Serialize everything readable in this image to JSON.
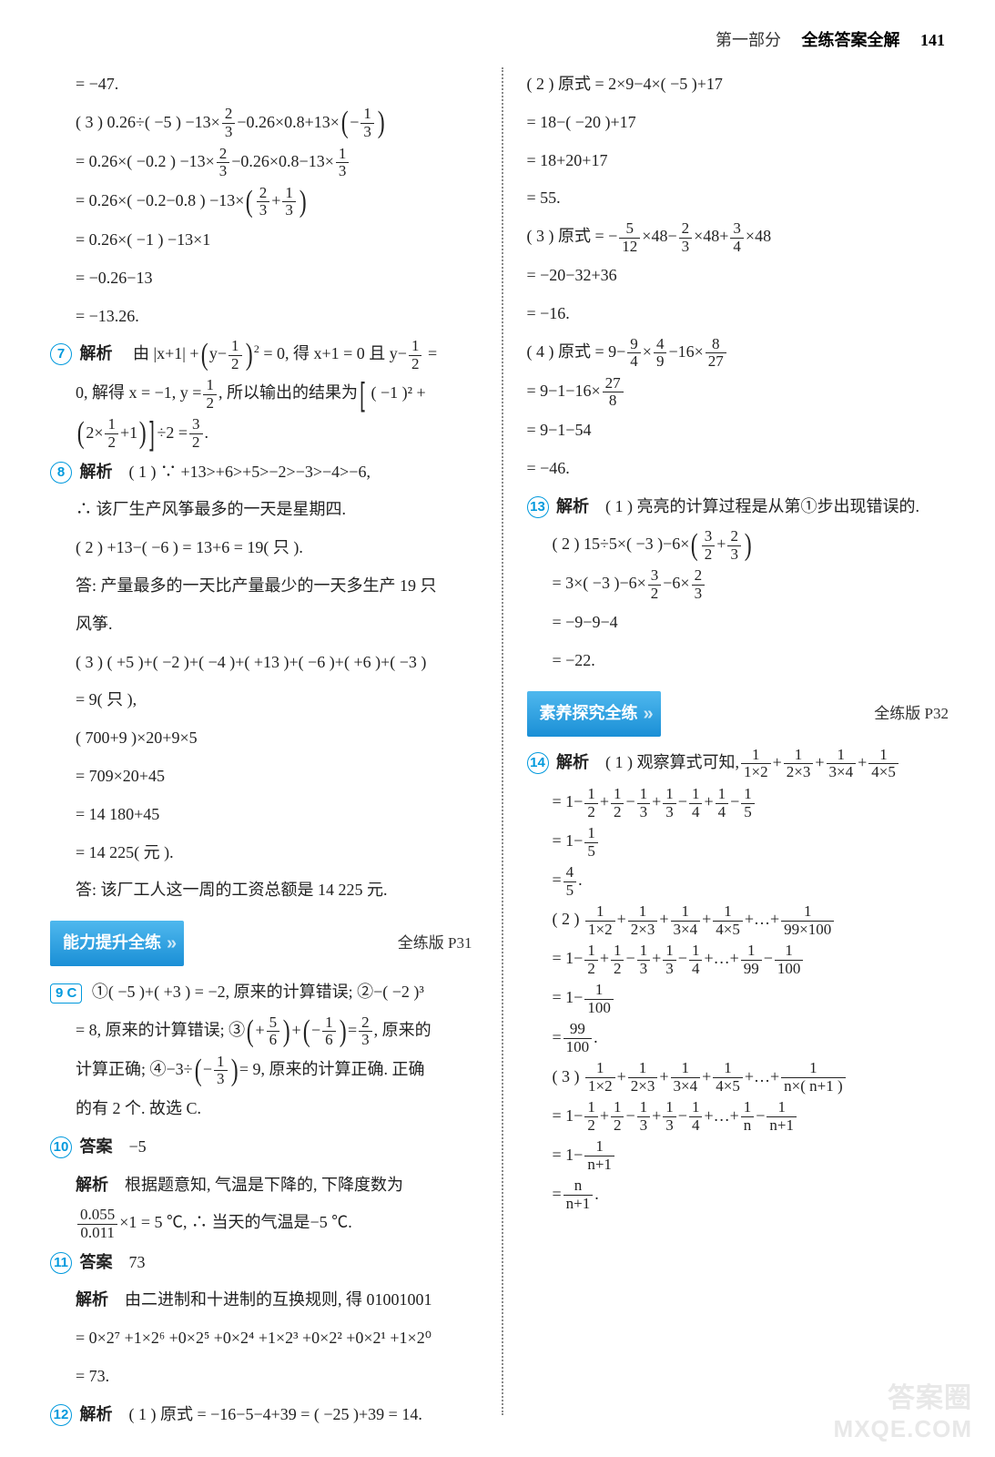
{
  "header": {
    "part": "第一部分",
    "title": "全练答案全解",
    "page": "141"
  },
  "watermark": {
    "cn": "答案圈",
    "en": "MXQE.COM"
  },
  "banner_ability": {
    "label": "能力提升全练",
    "ref": "全练版 P31"
  },
  "banner_explore": {
    "label": "素养探究全练",
    "ref": "全练版 P32"
  },
  "left": {
    "l01": "= −47.",
    "l02a": "( 3 ) 0.26÷( −5 ) −13×",
    "l02b": "−0.26×0.8+13×",
    "l02c_num": "1",
    "l02c_den": "3",
    "l02f_num": "2",
    "l02f_den": "3",
    "l03a": "= 0.26×( −0.2 ) −13×",
    "l03b_num": "2",
    "l03b_den": "3",
    "l03c": "−0.26×0.8−13×",
    "l03d_num": "1",
    "l03d_den": "3",
    "l04a": "= 0.26×( −0.2−0.8 ) −13×",
    "l04b_num": "2",
    "l04b_den": "3",
    "l04c_num": "1",
    "l04c_den": "3",
    "l05": "= 0.26×( −1 ) −13×1",
    "l06": "= −0.26−13",
    "l07": "= −13.26.",
    "q7": "7",
    "q7label": "解析",
    "l08a": "由 |x+1| +",
    "l08b_base": "y−",
    "l08b_num": "1",
    "l08b_den": "2",
    "l08c": "= 0, 得  x+1 = 0  且  y−",
    "l08d_num": "1",
    "l08d_den": "2",
    "l08e": "=",
    "l09a": "0, 解得 x = −1, y =",
    "l09b_num": "1",
    "l09b_den": "2",
    "l09c": ", 所以输出的结果为",
    "l09d": "( −1 )² +",
    "l10a_num": "1",
    "l10a_den": "2",
    "l10b": "2×",
    "l10c": "+1",
    "l10d": "÷2 =",
    "l10e_num": "3",
    "l10e_den": "2",
    "l10f": ".",
    "q8": "8",
    "q8label": "解析",
    "l11": "( 1 ) ∵ +13>+6>+5>−2>−3>−4>−6,",
    "l12": "∴ 该厂生产风筝最多的一天是星期四.",
    "l13": "( 2 ) +13−( −6 ) = 13+6 = 19( 只 ).",
    "l14": "答: 产量最多的一天比产量最少的一天多生产 19 只",
    "l14b": "风筝.",
    "l15": "( 3 ) ( +5 )+( −2 )+( −4 )+( +13 )+( −6 )+( +6 )+( −3 )",
    "l16": "= 9( 只 ),",
    "l17": "( 700+9 )×20+9×5",
    "l18": "= 709×20+45",
    "l19": "= 14 180+45",
    "l20": "= 14 225( 元 ).",
    "l21": "答: 该厂工人这一周的工资总额是 14 225 元.",
    "q9": "9",
    "q9ans": "C",
    "l22a": "①( −5 )+( +3 ) = −2, 原来的计算错误; ②−( −2 )³",
    "l23a": "= 8, 原来的计算错误; ③",
    "l23b_num": "5",
    "l23b_den": "6",
    "l23c_num": "1",
    "l23c_den": "6",
    "l23d": "=",
    "l23e_num": "2",
    "l23e_den": "3",
    "l23f": ", 原来的",
    "l24a": "计算正确; ④−3÷",
    "l24b_num": "1",
    "l24b_den": "3",
    "l24c": "= 9, 原来的计算正确. 正确",
    "l25": "的有 2 个. 故选 C.",
    "q10": "10",
    "q10a": "答案",
    "q10v": "−5",
    "q10b": "解析",
    "l26": "根据题意知, 气温是下降的, 下降度数为",
    "l27a_num": "0.055",
    "l27a_den": "0.011",
    "l27b": "×1 = 5 ℃, ∴ 当天的气温是−5 ℃.",
    "q11": "11",
    "q11a": "答案",
    "q11v": "73",
    "q11b": "解析",
    "l28": "由二进制和十进制的互换规则, 得 01001001",
    "l29": "= 0×2⁷ +1×2⁶ +0×2⁵ +0×2⁴ +1×2³ +0×2² +0×2¹ +1×2⁰",
    "l30": "= 73.",
    "q12": "12",
    "q12label": "解析",
    "l31": "( 1 ) 原式 = −16−5−4+39 = ( −25 )+39 = 14."
  },
  "right": {
    "r01": "( 2 ) 原式 = 2×9−4×( −5 )+17",
    "r02": "= 18−( −20 )+17",
    "r03": "= 18+20+17",
    "r04": "= 55.",
    "r05a": "( 3 ) 原式 = −",
    "r05b_num": "5",
    "r05b_den": "12",
    "r05c": "×48−",
    "r05d_num": "2",
    "r05d_den": "3",
    "r05e": "×48+",
    "r05f_num": "3",
    "r05f_den": "4",
    "r05g": "×48",
    "r06": "= −20−32+36",
    "r07": "= −16.",
    "r08a": "( 4 ) 原式 = 9−",
    "r08b_num": "9",
    "r08b_den": "4",
    "r08c": "×",
    "r08d_num": "4",
    "r08d_den": "9",
    "r08e": "−16×",
    "r08f_num": "8",
    "r08f_den": "27",
    "r09a": "= 9−1−16×",
    "r09b_num": "27",
    "r09b_den": "8",
    "r10": "= 9−1−54",
    "r11": "= −46.",
    "q13": "13",
    "q13label": "解析",
    "r12": "( 1 ) 亮亮的计算过程是从第①步出现错误的.",
    "r13a": "( 2 ) 15÷5×( −3 )−6×",
    "r13b_num": "3",
    "r13b_den": "2",
    "r13c_num": "2",
    "r13c_den": "3",
    "r14a": "= 3×( −3 )−6×",
    "r14b_num": "3",
    "r14b_den": "2",
    "r14c": "−6×",
    "r14d_num": "2",
    "r14d_den": "3",
    "r15": "= −9−9−4",
    "r16": "= −22.",
    "q14": "14",
    "q14label": "解析",
    "r17a": "( 1 ) 观察算式可知,",
    "r17b_num": "1",
    "r17b_den": "1×2",
    "r17c_num": "1",
    "r17c_den": "2×3",
    "r17d_num": "1",
    "r17d_den": "3×4",
    "r17e_num": "1",
    "r17e_den": "4×5",
    "r18a": "= 1−",
    "r18b_num": "1",
    "r18b_den": "2",
    "r18c": "+",
    "r18d_num": "1",
    "r18d_den": "2",
    "r18e": "−",
    "r18f_num": "1",
    "r18f_den": "3",
    "r18g": "+",
    "r18h_num": "1",
    "r18h_den": "3",
    "r18i": "−",
    "r18j_num": "1",
    "r18j_den": "4",
    "r18k": "+",
    "r18l_num": "1",
    "r18l_den": "4",
    "r18m": "−",
    "r18n_num": "1",
    "r18n_den": "5",
    "r19a": "= 1−",
    "r19b_num": "1",
    "r19b_den": "5",
    "r20a": "=",
    "r20b_num": "4",
    "r20b_den": "5",
    "r20c": ".",
    "r21a": "( 2 )",
    "r21b_num": "1",
    "r21b_den": "1×2",
    "r21c_num": "1",
    "r21c_den": "2×3",
    "r21d_num": "1",
    "r21d_den": "3×4",
    "r21e_num": "1",
    "r21e_den": "4×5",
    "r21f": "+…+",
    "r21g_num": "1",
    "r21g_den": "99×100",
    "r22a": "= 1−",
    "r22n_num": "1",
    "r22n_den": "2",
    "r22o": "+",
    "r22b_num": "1",
    "r22b_den": "2",
    "r22c": "−",
    "r22d_num": "1",
    "r22d_den": "3",
    "r22e": "+",
    "r22f_num": "1",
    "r22f_den": "3",
    "r22g": "−",
    "r22h_num": "1",
    "r22h_den": "4",
    "r22i": "+…+",
    "r22j_num": "1",
    "r22j_den": "99",
    "r22k": "−",
    "r22l_num": "1",
    "r22l_den": "100",
    "r23a": "= 1−",
    "r23b_num": "1",
    "r23b_den": "100",
    "r24a": "=",
    "r24b_num": "99",
    "r24b_den": "100",
    "r24c": ".",
    "r25a": "( 3 )",
    "r25b_num": "1",
    "r25b_den": "1×2",
    "r25c_num": "1",
    "r25c_den": "2×3",
    "r25d_num": "1",
    "r25d_den": "3×4",
    "r25e_num": "1",
    "r25e_den": "4×5",
    "r25f": "+…+",
    "r25g_num": "1",
    "r25g_den": "n×( n+1 )",
    "r26a": "= 1−",
    "r26b_num": "1",
    "r26b_den": "2",
    "r26c": "+",
    "r26d_num": "1",
    "r26d_den": "2",
    "r26e": "−",
    "r26f_num": "1",
    "r26f_den": "3",
    "r26g": "+",
    "r26h_num": "1",
    "r26h_den": "3",
    "r26i": "−",
    "r26j_num": "1",
    "r26j_den": "4",
    "r26k": "+…+",
    "r26l_num": "1",
    "r26l_den": "n",
    "r26m": "−",
    "r26n_num": "1",
    "r26n_den": "n+1",
    "r27a": "= 1−",
    "r27b_num": "1",
    "r27b_den": "n+1",
    "r28a": "=",
    "r28b_num": "n",
    "r28b_den": "n+1",
    "r28c": "."
  }
}
